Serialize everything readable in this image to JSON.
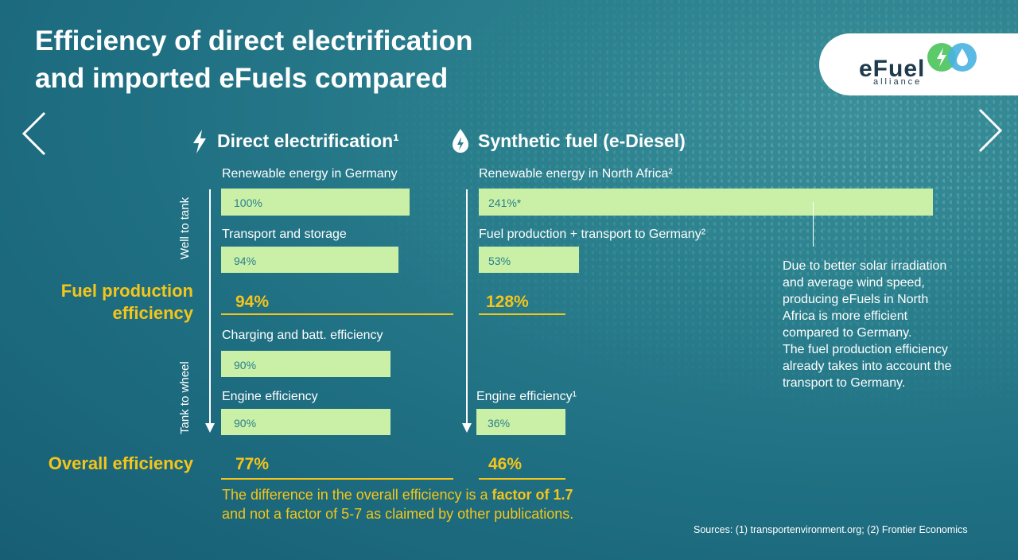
{
  "slide_title": "Efficiency of direct electrification\nand imported eFuels compared",
  "logo": {
    "text": "eFuel",
    "sub": "alliance",
    "icons": [
      "lightning-icon",
      "droplet-icon"
    ],
    "colors": {
      "green": "#5cc96b",
      "blue": "#49b3e0"
    }
  },
  "nav": {
    "prev": "<",
    "next": ">"
  },
  "columns": {
    "direct": {
      "title": "Direct electrification¹",
      "icon": "lightning-icon"
    },
    "synthetic": {
      "title": "Synthetic fuel (e-Diesel)",
      "icon": "droplet-icon"
    }
  },
  "axis": {
    "well_to_tank": "Well to tank",
    "tank_to_wheel": "Tank to wheel"
  },
  "row_labels": {
    "fuel_production": "Fuel production\nefficiency",
    "overall": "Overall efficiency"
  },
  "chart_data": {
    "type": "bar",
    "series": [
      {
        "name": "Direct electrification¹",
        "steps": [
          {
            "label": "Renewable energy in Germany",
            "value": 100,
            "display": "100%"
          },
          {
            "label": "Transport and storage",
            "value": 94,
            "display": "94%"
          },
          {
            "label": "Charging and batt. efficiency",
            "value": 90,
            "display": "90%"
          },
          {
            "label": "Engine efficiency",
            "value": 90,
            "display": "90%"
          }
        ],
        "fuel_production_efficiency": "94%",
        "overall_efficiency": "77%"
      },
      {
        "name": "Synthetic fuel (e-Diesel)",
        "steps": [
          {
            "label": "Renewable energy in North Africa²",
            "value": 241,
            "display": "241%*"
          },
          {
            "label": "Fuel production + transport to Germany²",
            "value": 53,
            "display": "53%"
          },
          {
            "label": "Engine efficiency¹",
            "value": 36,
            "display": "36%"
          }
        ],
        "fuel_production_efficiency": "128%",
        "overall_efficiency": "46%"
      }
    ]
  },
  "note": "Due to better solar irradiation\nand average wind speed,\nproducing eFuels in North\nAfrica is more  efficient\ncompared to Germany.\nThe fuel production efficiency\nalready takes into account the\ntransport to Germany.",
  "footer": {
    "part1": "The difference in the overall efficiency is a ",
    "highlight": "factor of 1.7",
    "part2": "and not a factor of 5-7 as claimed by other publications."
  },
  "sources": "Sources: (1) transportenvironment.org; (2) Frontier Economics",
  "colors": {
    "bar": "#c9f0a6",
    "accent": "#f5c51a",
    "bar_text": "#2a7f8d"
  }
}
